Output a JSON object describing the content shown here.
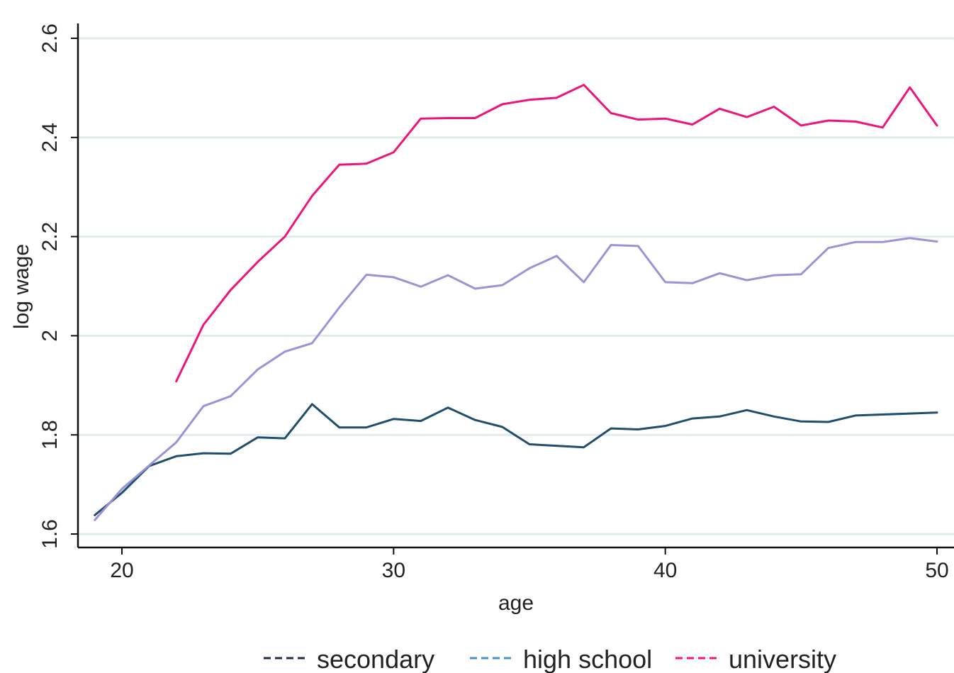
{
  "chart_data": {
    "type": "line",
    "title": "",
    "xlabel": "age",
    "ylabel": "log wage",
    "xlim": [
      18.4,
      50.6
    ],
    "ylim": [
      1.58,
      2.62
    ],
    "xticks": [
      20,
      30,
      40,
      50
    ],
    "yticks": [
      1.6,
      1.8,
      2,
      2.2,
      2.4,
      2.6
    ],
    "ytick_labels": [
      "1.6",
      "1.8",
      "2",
      "2.2",
      "2.4",
      "2.6"
    ],
    "grid": "horizontal",
    "legend_position": "bottom",
    "series": [
      {
        "name": "secondary",
        "color": "#1f4e6e",
        "legend_color": "#1c2e4a",
        "x": [
          19,
          20,
          21,
          22,
          23,
          24,
          25,
          26,
          27,
          28,
          29,
          30,
          31,
          32,
          33,
          34,
          35,
          36,
          37,
          38,
          39,
          40,
          41,
          42,
          43,
          44,
          45,
          46,
          47,
          48,
          49,
          50
        ],
        "values": [
          1.638,
          1.683,
          1.737,
          1.757,
          1.763,
          1.762,
          1.795,
          1.793,
          1.862,
          1.815,
          1.815,
          1.832,
          1.828,
          1.855,
          1.83,
          1.816,
          1.781,
          1.778,
          1.775,
          1.813,
          1.811,
          1.818,
          1.833,
          1.837,
          1.85,
          1.837,
          1.827,
          1.826,
          1.839,
          1.841,
          1.843,
          1.845
        ]
      },
      {
        "name": "high school",
        "color": "#9b93d6",
        "legend_color": "#4a8fd8",
        "x": [
          19,
          20,
          21,
          22,
          23,
          24,
          25,
          26,
          27,
          28,
          29,
          30,
          31,
          32,
          33,
          34,
          35,
          36,
          37,
          38,
          39,
          40,
          41,
          42,
          43,
          44,
          45,
          46,
          47,
          48,
          49,
          50
        ],
        "values": [
          1.628,
          1.691,
          1.738,
          1.785,
          1.858,
          1.878,
          1.932,
          1.968,
          1.985,
          2.057,
          2.123,
          2.118,
          2.099,
          2.122,
          2.095,
          2.102,
          2.136,
          2.161,
          2.108,
          2.183,
          2.181,
          2.108,
          2.106,
          2.126,
          2.112,
          2.122,
          2.124,
          2.177,
          2.189,
          2.189,
          2.197,
          2.19
        ]
      },
      {
        "name": "university",
        "color": "#f0147a",
        "legend_color": "#f0147a",
        "x": [
          22,
          23,
          24,
          25,
          26,
          27,
          28,
          29,
          30,
          31,
          32,
          33,
          34,
          35,
          36,
          37,
          38,
          39,
          40,
          41,
          42,
          43,
          44,
          45,
          46,
          47,
          48,
          49,
          50
        ],
        "values": [
          1.908,
          2.022,
          2.092,
          2.149,
          2.2,
          2.282,
          2.345,
          2.347,
          2.37,
          2.438,
          2.439,
          2.439,
          2.467,
          2.476,
          2.48,
          2.506,
          2.449,
          2.436,
          2.438,
          2.426,
          2.458,
          2.441,
          2.462,
          2.424,
          2.434,
          2.432,
          2.42,
          2.501,
          2.424
        ]
      }
    ]
  }
}
